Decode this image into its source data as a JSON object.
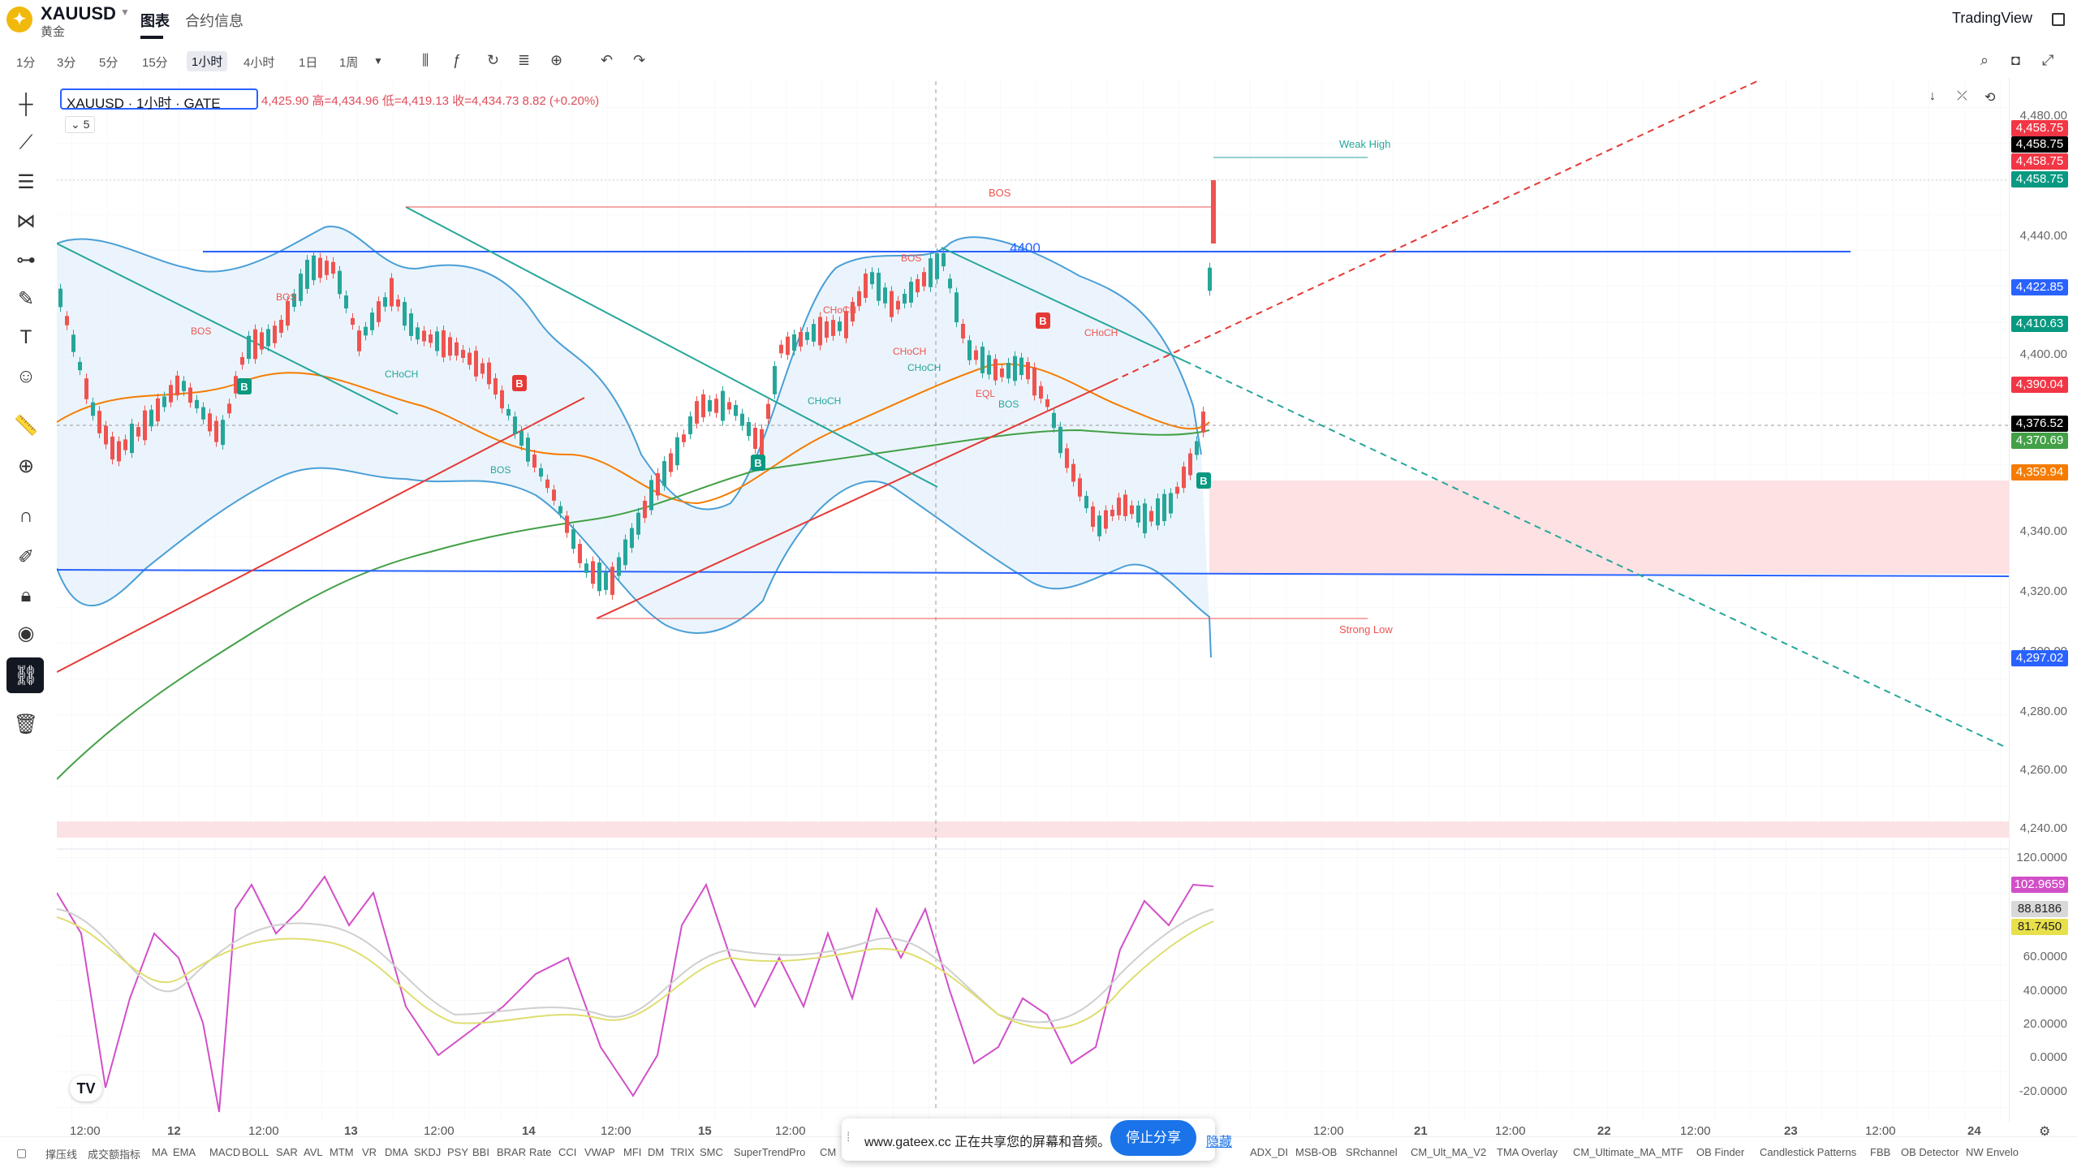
{
  "header": {
    "symbol": "XAUUSD",
    "subtitle": "黄金",
    "tab_chart": "图表",
    "tab_contract": "合约信息",
    "brand": "TradingView"
  },
  "toolbar": {
    "timeframes": [
      "1分",
      "3分",
      "5分",
      "15分",
      "1小时",
      "4小时",
      "1日",
      "1周"
    ],
    "selected": "1小时"
  },
  "legend": {
    "title": "XAUUSD · 1小时 · GATE",
    "ohlc": "4,425.90 高=4,434.96 低=4,419.13 收=4,434.73 8.82 (+0.20%)",
    "collapse": "5"
  },
  "annotations": {
    "level": "4400",
    "weak_high": "Weak High",
    "strong_low": "Strong Low",
    "bos": "BOS",
    "choch": "CHoCH",
    "eql": "EQL",
    "buy": "B"
  },
  "price_axis": [
    "4,480.00",
    "4,440.00",
    "4,400.00",
    "4,380.00",
    "4,340.00",
    "4,320.00",
    "4,300.00",
    "4,280.00",
    "4,260.00",
    "4,240.00"
  ],
  "price_badges": [
    {
      "text": "4,458.75",
      "color": "#f23645"
    },
    {
      "text": "4,458.75",
      "color": "#000000"
    },
    {
      "text": "4,458.75",
      "color": "#f23645"
    },
    {
      "text": "4,458.75",
      "color": "#089981"
    },
    {
      "text": "4,422.85",
      "color": "#2962ff"
    },
    {
      "text": "4,410.63",
      "color": "#089981"
    },
    {
      "text": "4,390.04",
      "color": "#f23645"
    },
    {
      "text": "4,376.52",
      "color": "#000000"
    },
    {
      "text": "4,370.69",
      "color": "#43a047"
    },
    {
      "text": "4,359.94",
      "color": "#f57c00"
    },
    {
      "text": "4,297.02",
      "color": "#2962ff"
    }
  ],
  "osc_axis": [
    "120.0000",
    "60.0000",
    "40.0000",
    "20.0000",
    "0.0000",
    "-20.0000"
  ],
  "osc_badges": [
    {
      "text": "102.9659",
      "color": "#d24fc8"
    },
    {
      "text": "88.8186",
      "color": "#d8d8d8"
    },
    {
      "text": "81.7450",
      "color": "#e8e04a"
    }
  ],
  "time_axis": [
    "12:00",
    "12",
    "12:00",
    "13",
    "12:00",
    "14",
    "12:00",
    "15",
    "12:00",
    "12:00",
    "21",
    "12:00",
    "22",
    "12:00",
    "23",
    "12:00",
    "24"
  ],
  "indicators": [
    "撑压线",
    "成交额指标",
    "MA",
    "EMA",
    "MACD",
    "BOLL",
    "SAR",
    "AVL",
    "MTM",
    "VR",
    "DMA",
    "SKDJ",
    "PSY",
    "BBI",
    "BRAR",
    "Rate",
    "CCI",
    "VWAP",
    "MFI",
    "DM",
    "TRIX",
    "SMC",
    "SuperTrendPro",
    "CM",
    "ADX_DI",
    "MSB-OB",
    "SRchannel",
    "CM_Ult_MA_V2",
    "TMA Overlay",
    "CM_Ultimate_MA_MTF",
    "OB Finder",
    "Candlestick Patterns",
    "FBB",
    "OB Detector",
    "NW Envelo"
  ],
  "share": {
    "text": "www.gateex.cc 正在共享您的屏幕和音频。",
    "stop": "停止分享",
    "hide": "隐藏"
  },
  "icons": {
    "logo": "gold-coin-icon"
  },
  "colors": {
    "up": "#26a69a",
    "down": "#ef5350",
    "accent": "#2962ff"
  }
}
